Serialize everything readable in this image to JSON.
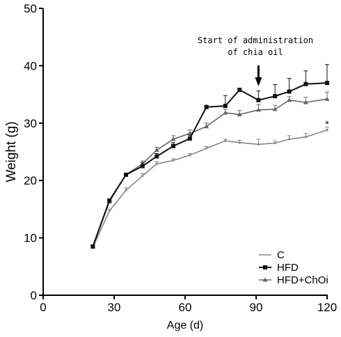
{
  "chart_data": {
    "type": "line",
    "title": "",
    "xlabel": "Age (d)",
    "ylabel": "Weight (g)",
    "xlim": [
      0,
      120
    ],
    "ylim": [
      0,
      50
    ],
    "x_ticks": [
      0,
      30,
      60,
      90,
      120
    ],
    "y_ticks": [
      0,
      10,
      20,
      30,
      40,
      50
    ],
    "grid": false,
    "legend_position": "bottom-right",
    "annotation": {
      "line1": "Start of administration",
      "line2": "of chia oil",
      "x": 91
    },
    "significance_marker": {
      "text": "*",
      "x": 120,
      "y": 29.3
    },
    "series": [
      {
        "name": "C",
        "color": "#888888",
        "marker": "tick",
        "x": [
          21,
          28,
          35,
          42,
          48,
          55,
          62,
          69,
          77,
          83,
          91,
          98,
          104,
          111,
          120
        ],
        "y": [
          8.3,
          14.7,
          18.3,
          20.8,
          22.9,
          23.5,
          24.4,
          25.6,
          26.9,
          26.6,
          26.3,
          26.5,
          27.2,
          27.6,
          28.8
        ],
        "err": [
          0.3,
          0.3,
          0.4,
          0.4,
          0.4,
          0.3,
          0.3,
          0.3,
          0.3,
          0.4,
          0.9,
          0.4,
          0.6,
          0.6,
          0.5
        ]
      },
      {
        "name": "HFD",
        "color": "#111111",
        "marker": "square",
        "x": [
          21,
          28,
          35,
          42,
          48,
          55,
          62,
          69,
          77,
          83,
          91,
          98,
          104,
          111,
          120
        ],
        "y": [
          8.5,
          16.5,
          21.0,
          22.5,
          24.2,
          26.0,
          27.3,
          32.8,
          33.0,
          35.8,
          34.0,
          34.7,
          35.5,
          36.8,
          37.0
        ],
        "err": [
          0.3,
          0.3,
          0.3,
          0.6,
          0.5,
          0.6,
          0.6,
          0.3,
          1.8,
          0.3,
          1.6,
          2.0,
          2.3,
          2.3,
          3.2
        ]
      },
      {
        "name": "HFD+ChOi",
        "color": "#666666",
        "marker": "triangle",
        "x": [
          21,
          28,
          35,
          42,
          48,
          55,
          62,
          69,
          77,
          83,
          91,
          98,
          104,
          111,
          120
        ],
        "y": [
          8.4,
          16.3,
          21.0,
          22.9,
          25.3,
          27.2,
          28.2,
          29.4,
          31.8,
          31.5,
          32.3,
          32.4,
          34.0,
          33.6,
          34.2
        ],
        "err": [
          0.3,
          0.3,
          0.3,
          0.5,
          0.5,
          0.6,
          0.6,
          0.6,
          0.6,
          0.7,
          0.9,
          0.7,
          0.6,
          0.9,
          1.2
        ]
      }
    ]
  }
}
